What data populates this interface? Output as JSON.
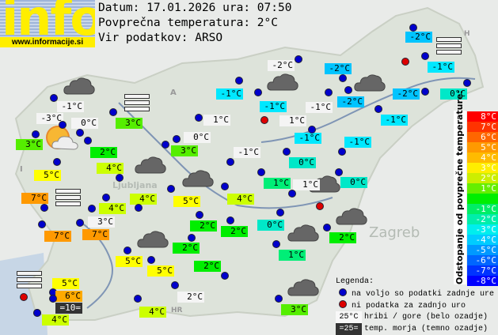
{
  "logo": {
    "word": "info",
    "url": "www.informacije.si"
  },
  "header": {
    "date_line": "Datum: 17.01.2026 ura: 07:50",
    "avg_line": "Povprečna temperatura: 2°C",
    "source_line": "Vir podatkov: ARSO"
  },
  "stations": [
    {
      "t": "-1°C",
      "bg": "#f4f4f4",
      "dot": "blue"
    },
    {
      "t": "-3°C",
      "bg": "#f4f4f4",
      "dot": "blue"
    },
    {
      "t": "0°C",
      "bg": "#f4f4f4",
      "dot": "blue"
    },
    {
      "t": "3°C",
      "bg": "#55ee00",
      "dot": "blue"
    },
    {
      "t": "3°C",
      "bg": "#55ee00",
      "dot": "blue"
    },
    {
      "t": "2°C",
      "bg": "#00ee00",
      "dot": "blue"
    },
    {
      "t": "4°C",
      "bg": "#ccff00",
      "dot": "blue"
    },
    {
      "t": "5°C",
      "bg": "#ffff00",
      "dot": "blue"
    },
    {
      "t": "-1°C",
      "bg": "#00e8ff",
      "dot": "blue"
    },
    {
      "t": "1°C",
      "bg": "#f4f4f4",
      "dot": "blue"
    },
    {
      "t": "0°C",
      "bg": "#f4f4f4",
      "dot": "blue"
    },
    {
      "t": "3°C",
      "bg": "#55ee00",
      "dot": "blue"
    },
    {
      "t": "-1°C",
      "bg": "#f4f4f4",
      "dot": "blue"
    },
    {
      "t": "-2°C",
      "bg": "#f4f4f4",
      "dot": "blue"
    },
    {
      "t": "-2°C",
      "bg": "#00c4ff",
      "dot": "blue"
    },
    {
      "t": "-1°C",
      "bg": "#00e8ff",
      "dot": "blue"
    },
    {
      "t": "-1°C",
      "bg": "#f4f4f4",
      "dot": "blue"
    },
    {
      "t": "-2°C",
      "bg": "#00c4ff",
      "dot": "blue"
    },
    {
      "t": "1°C",
      "bg": "#f4f4f4",
      "dot": "red"
    },
    {
      "t": "-1°C",
      "bg": "#00e8ff",
      "dot": "blue"
    },
    {
      "t": "-2°C",
      "bg": "#00c4ff",
      "dot": "blue"
    },
    {
      "t": "-1°C",
      "bg": "#00e8ff",
      "dot": "blue"
    },
    {
      "t": "-2°C",
      "bg": "#00c4ff",
      "dot": "blue"
    },
    {
      "t": "0°C",
      "bg": "#00e8c8",
      "dot": "blue"
    },
    {
      "t": "-1°C",
      "bg": "#00e8ff",
      "dot": "blue"
    },
    {
      "t": "-1°C",
      "bg": "#00e8ff",
      "dot": "blue"
    },
    {
      "t": "0°C",
      "bg": "#00e8c8",
      "dot": "blue"
    },
    {
      "t": "1°C",
      "bg": "#00ee77",
      "dot": "blue"
    },
    {
      "t": "1°C",
      "bg": "#f4f4f4",
      "dot": "blue"
    },
    {
      "t": "0°C",
      "bg": "#00e8c8",
      "dot": "blue"
    },
    {
      "t": "2°C",
      "bg": "#00ee00",
      "dot": "blue"
    },
    {
      "t": "7°C",
      "bg": "#ff9900",
      "dot": "blue"
    },
    {
      "t": "4°C",
      "bg": "#ccff00",
      "dot": "blue"
    },
    {
      "t": "4°C",
      "bg": "#ccff00",
      "dot": "blue"
    },
    {
      "t": "5°C",
      "bg": "#ffff00",
      "dot": "blue"
    },
    {
      "t": "4°C",
      "bg": "#ccff00",
      "dot": "blue"
    },
    {
      "t": "3°C",
      "bg": "#f4f4f4",
      "dot": "blue"
    },
    {
      "t": "7°C",
      "bg": "#ff9900",
      "dot": "blue"
    },
    {
      "t": "7°C",
      "bg": "#ff9900",
      "dot": "blue"
    },
    {
      "t": "2°C",
      "bg": "#00ee00",
      "dot": "blue"
    },
    {
      "t": "2°C",
      "bg": "#00ee00",
      "dot": "blue"
    },
    {
      "t": "0°C",
      "bg": "#00e8c8",
      "dot": "blue"
    },
    {
      "t": "2°C",
      "bg": "#00ee00",
      "dot": "blue"
    },
    {
      "t": "1°C",
      "bg": "#00ee77",
      "dot": "blue"
    },
    {
      "t": "5°C",
      "bg": "#ffff00",
      "dot": "blue"
    },
    {
      "t": "5°C",
      "bg": "#ffff00",
      "dot": "blue"
    },
    {
      "t": "2°C",
      "bg": "#00ee00",
      "dot": "blue"
    },
    {
      "t": "2°C",
      "bg": "#f4f4f4",
      "dot": "blue"
    },
    {
      "t": "4°C",
      "bg": "#ccff00",
      "dot": "blue"
    },
    {
      "t": "5°C",
      "bg": "#ffff00",
      "dot": "blue"
    },
    {
      "t": "6°C",
      "bg": "#ffaa00",
      "dot": "blue"
    },
    {
      "t": "=10=",
      "bg": "#333333",
      "fg": "#ffffff",
      "dot": "blue"
    },
    {
      "t": "4°C",
      "bg": "#ccff00",
      "dot": "blue"
    },
    {
      "t": "3°C",
      "bg": "#55ee00",
      "dot": "blue"
    }
  ],
  "extra_red_dots": 2,
  "weather_icons": [
    "cloud-icon",
    "sun-cloud-icon",
    "fog-icon"
  ],
  "scale": {
    "title": "Odstopanje od povprečne temperature:",
    "rows": [
      {
        "t": "8°C",
        "c": "#ff0000"
      },
      {
        "t": "7°C",
        "c": "#ff3300"
      },
      {
        "t": "6°C",
        "c": "#ff6600"
      },
      {
        "t": "5°C",
        "c": "#ff9900"
      },
      {
        "t": "4°C",
        "c": "#ffbb00"
      },
      {
        "t": "3°C",
        "c": "#ffee00"
      },
      {
        "t": "2°C",
        "c": "#ccee00"
      },
      {
        "t": "1°C",
        "c": "#66ee00"
      },
      {
        "t": "",
        "c": "#00ee00"
      },
      {
        "t": "-1°C",
        "c": "#00ee66"
      },
      {
        "t": "-2°C",
        "c": "#00eeaa"
      },
      {
        "t": "-3°C",
        "c": "#00eeee"
      },
      {
        "t": "-4°C",
        "c": "#00ccff"
      },
      {
        "t": "-5°C",
        "c": "#0099ff"
      },
      {
        "t": "-6°C",
        "c": "#0066ff"
      },
      {
        "t": "-7°C",
        "c": "#0033ff"
      },
      {
        "t": "-8°C",
        "c": "#0000ff"
      }
    ]
  },
  "legend": {
    "title": "Legenda:",
    "blue_dot": "na voljo so podatki zadnje ure",
    "red_dot": "ni podatka za zadnjo uro",
    "mountain_sample": "25°C",
    "mountain_text": "hribi / gore (belo ozadje)",
    "sea_sample": "=25=",
    "sea_text": "temp. morja (temno ozadje)"
  },
  "map_labels": {
    "city": "Zagreb",
    "border_hr": "HR",
    "border_a": "A",
    "border_h": "H",
    "border_i": "I",
    "ljubljana": "Ljubljana"
  }
}
